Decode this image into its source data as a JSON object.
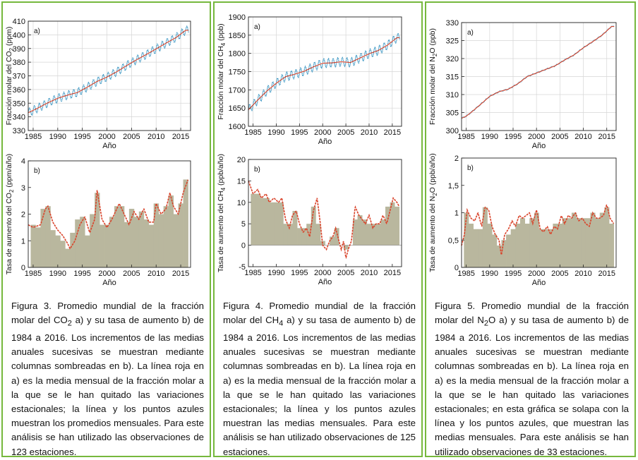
{
  "panels": [
    {
      "id": "co2",
      "caption": {
        "parts": [
          "Figura 3. Promedio mundial de la fracción molar del CO",
          "2",
          " a) y su tasa de aumento b) de 1984 a 2016. Los incrementos de las medias anuales sucesivas se muestran mediante columnas sombreadas en b). La línea roja en a) es la media mensual de la fracción molar a la que se le han quitado las variaciones estacionales; la línea y los puntos azules muestran los promedios mensuales. Para este análisis se han utilizado las observaciones de 123 estaciones."
        ]
      },
      "chart_data": [
        {
          "type": "line",
          "panel_label": "a)",
          "xlabel": "Año",
          "ylabel": [
            "Fracción molar del CO",
            "2",
            " (ppm)"
          ],
          "xlim": [
            1984,
            2017
          ],
          "ylim": [
            330,
            410
          ],
          "xticks": [
            1985,
            1990,
            1995,
            2000,
            2005,
            2010,
            2015
          ],
          "yticks": [
            330,
            340,
            350,
            360,
            370,
            380,
            390,
            400,
            410
          ],
          "grid": true,
          "series": [
            {
              "kind": "deseasonalized",
              "color": "#d9432a",
              "x": [
                1984,
                1986,
                1988,
                1990,
                1992,
                1994,
                1996,
                1998,
                2000,
                2002,
                2004,
                2006,
                2008,
                2010,
                2012,
                2014,
                2016
              ],
              "values": [
                343.0,
                346.5,
                350.3,
                353.6,
                355.9,
                357.8,
                361.7,
                365.9,
                369.1,
                373.0,
                377.5,
                381.7,
                385.6,
                389.7,
                393.9,
                397.9,
                403.3
              ]
            },
            {
              "kind": "monthly",
              "color": "#2d8fbf",
              "seasonal_amplitude": 3.0
            }
          ]
        },
        {
          "type": "bar",
          "panel_label": "b)",
          "xlabel": "Año",
          "ylabel": [
            "Tasa de aumento del CO",
            "2",
            " (ppm/año)"
          ],
          "xlim": [
            1984,
            2017
          ],
          "ylim": [
            0,
            4
          ],
          "xticks": [
            1985,
            1990,
            1995,
            2000,
            2005,
            2010,
            2015
          ],
          "yticks": [
            0,
            1,
            2,
            3,
            4
          ],
          "bar_color": "#b9b79e",
          "line_color": "#d9432a",
          "categories": [
            1985,
            1986,
            1987,
            1988,
            1989,
            1990,
            1991,
            1992,
            1993,
            1994,
            1995,
            1996,
            1997,
            1998,
            1999,
            2000,
            2001,
            2002,
            2003,
            2004,
            2005,
            2006,
            2007,
            2008,
            2009,
            2010,
            2011,
            2012,
            2013,
            2014,
            2015,
            2016
          ],
          "values": [
            1.6,
            1.5,
            2.2,
            2.3,
            1.4,
            1.2,
            1.0,
            0.7,
            1.3,
            1.8,
            1.9,
            1.2,
            2.0,
            2.8,
            1.6,
            1.6,
            1.9,
            2.3,
            2.3,
            1.7,
            2.2,
            1.9,
            2.1,
            1.8,
            1.6,
            2.4,
            2.0,
            2.3,
            2.7,
            2.0,
            2.4,
            3.3
          ],
          "growth_x": [
            1984.0,
            1985.0,
            1986.5,
            1987.5,
            1988.0,
            1989.0,
            1990.0,
            1991.0,
            1992.0,
            1992.5,
            1993.5,
            1994.5,
            1995.5,
            1996.5,
            1997.5,
            1998.0,
            1999.0,
            2000.0,
            2001.0,
            2002.0,
            2002.5,
            2003.5,
            2004.5,
            2005.5,
            2006.5,
            2007.5,
            2008.5,
            2009.5,
            2010.0,
            2011.0,
            2012.0,
            2012.8,
            2013.5,
            2014.5,
            2015.5,
            2016.5
          ],
          "growth_y": [
            1.6,
            1.5,
            1.6,
            2.2,
            2.3,
            1.7,
            1.4,
            1.2,
            0.9,
            0.7,
            1.0,
            1.6,
            1.9,
            1.3,
            1.8,
            2.9,
            1.8,
            1.5,
            1.8,
            2.2,
            2.4,
            2.0,
            1.6,
            2.1,
            1.8,
            2.2,
            1.7,
            1.7,
            2.4,
            2.0,
            2.2,
            2.8,
            2.3,
            2.0,
            2.8,
            3.3
          ]
        }
      ]
    },
    {
      "id": "ch4",
      "caption": {
        "parts": [
          "Figura 4. Promedio mundial de la fracción molar del CH",
          "4",
          " a) y su tasa de aumento b) de 1984 a 2016. Los incrementos de las medias anuales sucesivas se muestran mediante columnas sombreadas en b). La línea roja en a) es la media mensual de la fracción molar a la que se le han quitado las variaciones estacionales; la línea y los puntos azules muestran las medias mensuales. Para este análisis se han utilizado observaciones de 125 estaciones."
        ]
      },
      "chart_data": [
        {
          "type": "line",
          "panel_label": "a)",
          "xlabel": "Año",
          "ylabel": [
            "Fracción molar del CH",
            "4",
            " (ppb)"
          ],
          "xlim": [
            1984,
            2017
          ],
          "ylim": [
            1600,
            1900
          ],
          "xticks": [
            1985,
            1990,
            1995,
            2000,
            2005,
            2010,
            2015
          ],
          "yticks": [
            1600,
            1650,
            1700,
            1750,
            1800,
            1850,
            1900
          ],
          "grid": true,
          "series": [
            {
              "kind": "deseasonalized",
              "color": "#d9432a",
              "x": [
                1984,
                1986,
                1988,
                1990,
                1992,
                1994,
                1996,
                1998,
                2000,
                2002,
                2004,
                2006,
                2007,
                2008,
                2010,
                2012,
                2014,
                2016
              ],
              "values": [
                1645,
                1672,
                1697,
                1718,
                1736,
                1743,
                1751,
                1763,
                1773,
                1774,
                1777,
                1775,
                1781,
                1787,
                1799,
                1808,
                1823,
                1843
              ]
            },
            {
              "kind": "monthly",
              "color": "#2d8fbf",
              "seasonal_amplitude": 12
            }
          ]
        },
        {
          "type": "bar",
          "panel_label": "b)",
          "xlabel": "Año",
          "ylabel": [
            "Tasa de aumento del CH",
            "4",
            " (ppb/año)"
          ],
          "xlim": [
            1984,
            2017
          ],
          "ylim": [
            -5,
            20
          ],
          "xticks": [
            1985,
            1990,
            1995,
            2000,
            2005,
            2010,
            2015
          ],
          "yticks": [
            -5,
            0,
            5,
            10,
            15,
            20
          ],
          "bar_color": "#b9b79e",
          "line_color": "#d9432a",
          "categories": [
            1985,
            1986,
            1987,
            1988,
            1989,
            1990,
            1991,
            1992,
            1993,
            1994,
            1995,
            1996,
            1997,
            1998,
            1999,
            2000,
            2001,
            2002,
            2003,
            2004,
            2005,
            2006,
            2007,
            2008,
            2009,
            2010,
            2011,
            2012,
            2013,
            2014,
            2015,
            2016
          ],
          "values": [
            12,
            12,
            11,
            11,
            10,
            10,
            10,
            5,
            5,
            8,
            4,
            4,
            5,
            9,
            5,
            1,
            0,
            2,
            4,
            0,
            -1,
            0,
            6,
            7,
            6,
            5,
            5,
            5,
            6,
            9,
            10,
            9
          ],
          "growth_x": [
            1984.0,
            1985.0,
            1986.0,
            1986.8,
            1987.8,
            1988.5,
            1989.5,
            1990.5,
            1991.2,
            1992.0,
            1992.8,
            1993.5,
            1994.3,
            1995.0,
            1995.8,
            1996.5,
            1997.2,
            1998.0,
            1998.8,
            1999.5,
            2000.0,
            2000.8,
            2001.5,
            2002.2,
            2002.8,
            2003.5,
            2004.0,
            2004.5,
            2005.0,
            2005.5,
            2006.2,
            2007.0,
            2007.8,
            2008.5,
            2009.2,
            2010.0,
            2010.8,
            2011.5,
            2012.3,
            2013.0,
            2013.8,
            2014.5,
            2015.2,
            2016.0,
            2016.5
          ],
          "growth_y": [
            15,
            12,
            13,
            11,
            12,
            10,
            11,
            10,
            11,
            6,
            4,
            7,
            8,
            5,
            3,
            4,
            2,
            8,
            11,
            5,
            0,
            -1,
            1,
            2,
            4,
            1,
            -1,
            1,
            -3,
            -1,
            1,
            9,
            7,
            6,
            5,
            7,
            4,
            5,
            5,
            7,
            5,
            8,
            11,
            10,
            9
          ]
        }
      ]
    },
    {
      "id": "n2o",
      "caption": {
        "parts": [
          "Figura 5. Promedio mundial de la fracción molar del N",
          "2",
          "O a) y su tasa de aumento b) de 1984 a 2016. Los incrementos de las medias anuales sucesivas se muestran mediante columnas sombreadas en b). La línea roja en a) es la media mensual de la fracción molar a la que se le han quitado las variaciones estacionales; en esta gráfica se solapa con la línea y los puntos azules, que muestran las medias mensuales. Para este análisis se han utilizado observaciones de 33 estaciones."
        ]
      },
      "chart_data": [
        {
          "type": "line",
          "panel_label": "a)",
          "xlabel": "Año",
          "ylabel": [
            "Fracción molar del N",
            "2",
            "O (ppb)"
          ],
          "xlim": [
            1984,
            2017
          ],
          "ylim": [
            300,
            330
          ],
          "xticks": [
            1985,
            1990,
            1995,
            2000,
            2005,
            2010,
            2015
          ],
          "yticks": [
            300,
            305,
            310,
            315,
            320,
            325,
            330
          ],
          "grid": true,
          "series": [
            {
              "kind": "deseasonalized",
              "color": "#d9432a",
              "x": [
                1984,
                1985,
                1986,
                1988,
                1990,
                1992,
                1994,
                1996,
                1998,
                2000,
                2002,
                2004,
                2006,
                2008,
                2010,
                2012,
                2014,
                2016
              ],
              "values": [
                303.4,
                304.0,
                305.0,
                307.2,
                309.5,
                310.8,
                311.5,
                313.0,
                315.0,
                316.0,
                317.0,
                318.0,
                319.6,
                321.0,
                323.0,
                324.7,
                326.5,
                328.9
              ]
            },
            {
              "kind": "monthly",
              "color": "#2d8fbf",
              "seasonal_amplitude": 0.15
            }
          ]
        },
        {
          "type": "bar",
          "panel_label": "b)",
          "xlabel": "Año",
          "ylabel": [
            "Tasa de aumento del N",
            "2",
            "O (ppb/año)"
          ],
          "xlim": [
            1984,
            2017
          ],
          "ylim": [
            0,
            2
          ],
          "xticks": [
            1985,
            1990,
            1995,
            2000,
            2005,
            2010,
            2015
          ],
          "yticks": [
            0,
            0.5,
            1,
            1.5,
            2
          ],
          "ytick_labels": [
            "0",
            "0,5",
            "1",
            "1,5",
            "2"
          ],
          "bar_color": "#b9b79e",
          "line_color": "#d9432a",
          "categories": [
            1985,
            1986,
            1987,
            1988,
            1989,
            1990,
            1991,
            1992,
            1993,
            1994,
            1995,
            1996,
            1997,
            1998,
            1999,
            2000,
            2001,
            2002,
            2003,
            2004,
            2005,
            2006,
            2007,
            2008,
            2009,
            2010,
            2011,
            2012,
            2013,
            2014,
            2015,
            2016
          ],
          "values": [
            1.0,
            0.8,
            0.7,
            0.7,
            1.1,
            0.8,
            0.6,
            0.4,
            0.5,
            0.6,
            0.7,
            0.8,
            0.9,
            0.8,
            0.9,
            1.0,
            0.7,
            0.7,
            0.7,
            0.8,
            0.8,
            0.9,
            0.9,
            1.0,
            0.9,
            0.9,
            0.9,
            1.0,
            0.9,
            1.0,
            1.1,
            0.8
          ],
          "growth_x": [
            1984.0,
            1984.6,
            1985.2,
            1986.0,
            1986.8,
            1987.5,
            1988.3,
            1989.0,
            1989.8,
            1990.5,
            1991.2,
            1992.0,
            1992.5,
            1993.2,
            1994.0,
            1994.8,
            1995.5,
            1996.3,
            1997.0,
            1997.8,
            1998.5,
            1999.2,
            2000.0,
            2000.8,
            2001.5,
            2002.3,
            2003.0,
            2003.8,
            2004.5,
            2005.3,
            2006.0,
            2006.8,
            2007.5,
            2008.3,
            2009.0,
            2009.8,
            2010.5,
            2011.3,
            2012.0,
            2012.8,
            2013.5,
            2014.3,
            2015.0,
            2015.7,
            2016.5
          ],
          "growth_y": [
            0.4,
            0.6,
            1.05,
            0.9,
            0.85,
            1.0,
            0.75,
            1.1,
            1.05,
            0.75,
            0.6,
            0.5,
            0.22,
            0.6,
            0.7,
            0.85,
            0.75,
            0.95,
            0.9,
            0.95,
            1.0,
            0.8,
            1.05,
            0.7,
            0.65,
            0.75,
            0.6,
            0.75,
            0.7,
            0.95,
            0.8,
            0.95,
            0.9,
            1.0,
            0.85,
            0.9,
            0.8,
            0.75,
            1.0,
            0.9,
            0.9,
            0.95,
            1.15,
            0.9,
            0.8
          ]
        }
      ]
    }
  ]
}
